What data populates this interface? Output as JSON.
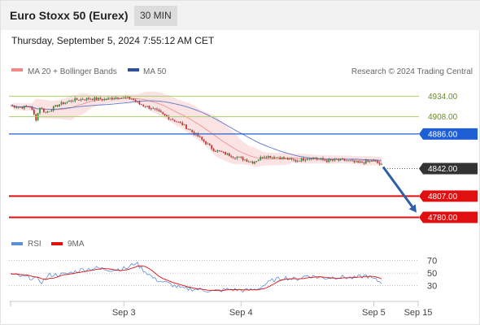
{
  "header": {
    "title": "Euro Stoxx 50 (Eurex)",
    "timeframe": "30 MIN",
    "timestamp": "Thursday, September 5, 2024 7:55:12 AM CET"
  },
  "colors": {
    "bull": "#2e9a37",
    "bear": "#d02d2d",
    "ma20": "#f08a8a",
    "bollinger_fill": "#fbd9d9",
    "ma50": "#5a78c8",
    "resistance": "#a8cf6a",
    "current": "#1f5fd6",
    "last_price": "#333333",
    "support": "#e01010",
    "arrow": "#2c5fa8",
    "rsi": "#5a8fd8",
    "rsi_ma": "#e01010"
  },
  "chart_data": [
    {
      "type": "candlestick",
      "legend": [
        {
          "label": "MA 20 + Bollinger Bands",
          "color_key": "ma20"
        },
        {
          "label": "MA 50",
          "color_key": "ma50"
        }
      ],
      "legend_placement": "top-left",
      "credit": "Research © 2024 Trading Central",
      "ylim": [
        4766,
        4952
      ],
      "price_anchors": [
        {
          "i": 0,
          "p": 4922
        },
        {
          "i": 5,
          "p": 4920
        },
        {
          "i": 10,
          "p": 4921
        },
        {
          "i": 13,
          "p": 4905
        },
        {
          "i": 15,
          "p": 4920
        },
        {
          "i": 18,
          "p": 4913
        },
        {
          "i": 25,
          "p": 4924
        },
        {
          "i": 32,
          "p": 4929
        },
        {
          "i": 40,
          "p": 4931
        },
        {
          "i": 48,
          "p": 4930
        },
        {
          "i": 55,
          "p": 4933
        },
        {
          "i": 62,
          "p": 4931
        },
        {
          "i": 66,
          "p": 4924
        },
        {
          "i": 72,
          "p": 4919
        },
        {
          "i": 80,
          "p": 4908
        },
        {
          "i": 88,
          "p": 4898
        },
        {
          "i": 96,
          "p": 4883
        },
        {
          "i": 104,
          "p": 4866
        },
        {
          "i": 112,
          "p": 4859
        },
        {
          "i": 118,
          "p": 4855
        },
        {
          "i": 124,
          "p": 4850
        },
        {
          "i": 130,
          "p": 4858
        },
        {
          "i": 138,
          "p": 4856
        },
        {
          "i": 146,
          "p": 4852
        },
        {
          "i": 154,
          "p": 4856
        },
        {
          "i": 162,
          "p": 4852
        },
        {
          "i": 170,
          "p": 4853
        },
        {
          "i": 178,
          "p": 4849
        },
        {
          "i": 186,
          "p": 4852
        },
        {
          "i": 190,
          "p": 4846
        }
      ],
      "candle_count": 190,
      "levels": [
        {
          "value": 4934.0,
          "label": "4934.00",
          "kind": "resistance"
        },
        {
          "value": 4908.0,
          "label": "4908.00",
          "kind": "resistance"
        },
        {
          "value": 4886.0,
          "label": "4886.00",
          "kind": "current"
        },
        {
          "value": 4842.0,
          "label": "4842.00",
          "kind": "last_price"
        },
        {
          "value": 4807.0,
          "label": "4807.00",
          "kind": "support"
        },
        {
          "value": 4780.0,
          "label": "4780.00",
          "kind": "support"
        }
      ],
      "forecast_arrow": {
        "from_price": 4844,
        "to_price": 4786
      }
    },
    {
      "type": "line",
      "legend": [
        {
          "label": "RSI",
          "color_key": "rsi"
        },
        {
          "label": "9MA",
          "color_key": "rsi_ma"
        }
      ],
      "legend_placement": "top-left",
      "ylim": [
        15,
        80
      ],
      "yticks": [
        70,
        50,
        30
      ],
      "rsi_anchors": [
        {
          "i": 0,
          "v": 48
        },
        {
          "i": 6,
          "v": 44
        },
        {
          "i": 12,
          "v": 42
        },
        {
          "i": 16,
          "v": 36
        },
        {
          "i": 20,
          "v": 47
        },
        {
          "i": 28,
          "v": 48
        },
        {
          "i": 36,
          "v": 55
        },
        {
          "i": 44,
          "v": 58
        },
        {
          "i": 52,
          "v": 55
        },
        {
          "i": 60,
          "v": 58
        },
        {
          "i": 64,
          "v": 67
        },
        {
          "i": 68,
          "v": 55
        },
        {
          "i": 74,
          "v": 40
        },
        {
          "i": 80,
          "v": 34
        },
        {
          "i": 88,
          "v": 25
        },
        {
          "i": 96,
          "v": 24
        },
        {
          "i": 104,
          "v": 21
        },
        {
          "i": 112,
          "v": 24
        },
        {
          "i": 120,
          "v": 22
        },
        {
          "i": 126,
          "v": 24
        },
        {
          "i": 134,
          "v": 38
        },
        {
          "i": 140,
          "v": 43
        },
        {
          "i": 146,
          "v": 40
        },
        {
          "i": 152,
          "v": 46
        },
        {
          "i": 160,
          "v": 42
        },
        {
          "i": 168,
          "v": 44
        },
        {
          "i": 176,
          "v": 42
        },
        {
          "i": 182,
          "v": 46
        },
        {
          "i": 186,
          "v": 40
        },
        {
          "i": 190,
          "v": 35
        }
      ]
    }
  ],
  "x_axis": {
    "ticks": [
      {
        "label": "Sep 3",
        "i": 44
      },
      {
        "label": "Sep 4",
        "i": 92
      },
      {
        "label": "Sep 5",
        "i": 141
      },
      {
        "label": "Sep 15",
        "i": 164
      }
    ]
  }
}
